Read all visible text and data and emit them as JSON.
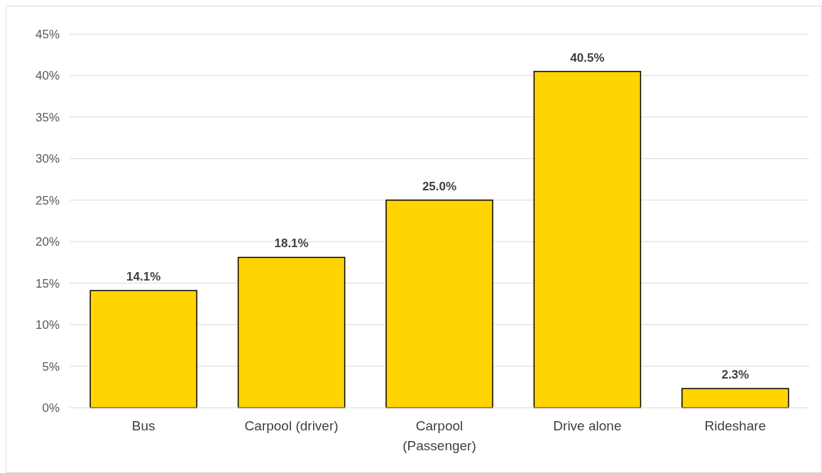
{
  "chart_data": {
    "type": "bar",
    "categories": [
      "Bus",
      "Carpool (driver)",
      "Carpool (Passenger)",
      "Drive alone",
      "Rideshare"
    ],
    "values": [
      14.1,
      18.1,
      25.0,
      40.5,
      2.3
    ],
    "value_labels": [
      "14.1%",
      "18.1%",
      "25.0%",
      "40.5%",
      "2.3%"
    ],
    "color": "#ffd400",
    "ylim": [
      0,
      45
    ],
    "yticks": [
      {
        "value": 0,
        "label": "0%"
      },
      {
        "value": 5,
        "label": "5%"
      },
      {
        "value": 10,
        "label": "10%"
      },
      {
        "value": 15,
        "label": "15%"
      },
      {
        "value": 20,
        "label": "20%"
      },
      {
        "value": 25,
        "label": "25%"
      },
      {
        "value": 30,
        "label": "30%"
      },
      {
        "value": 35,
        "label": "35%"
      },
      {
        "value": 40,
        "label": "40%"
      },
      {
        "value": 45,
        "label": "45%"
      }
    ],
    "grid": "y"
  }
}
